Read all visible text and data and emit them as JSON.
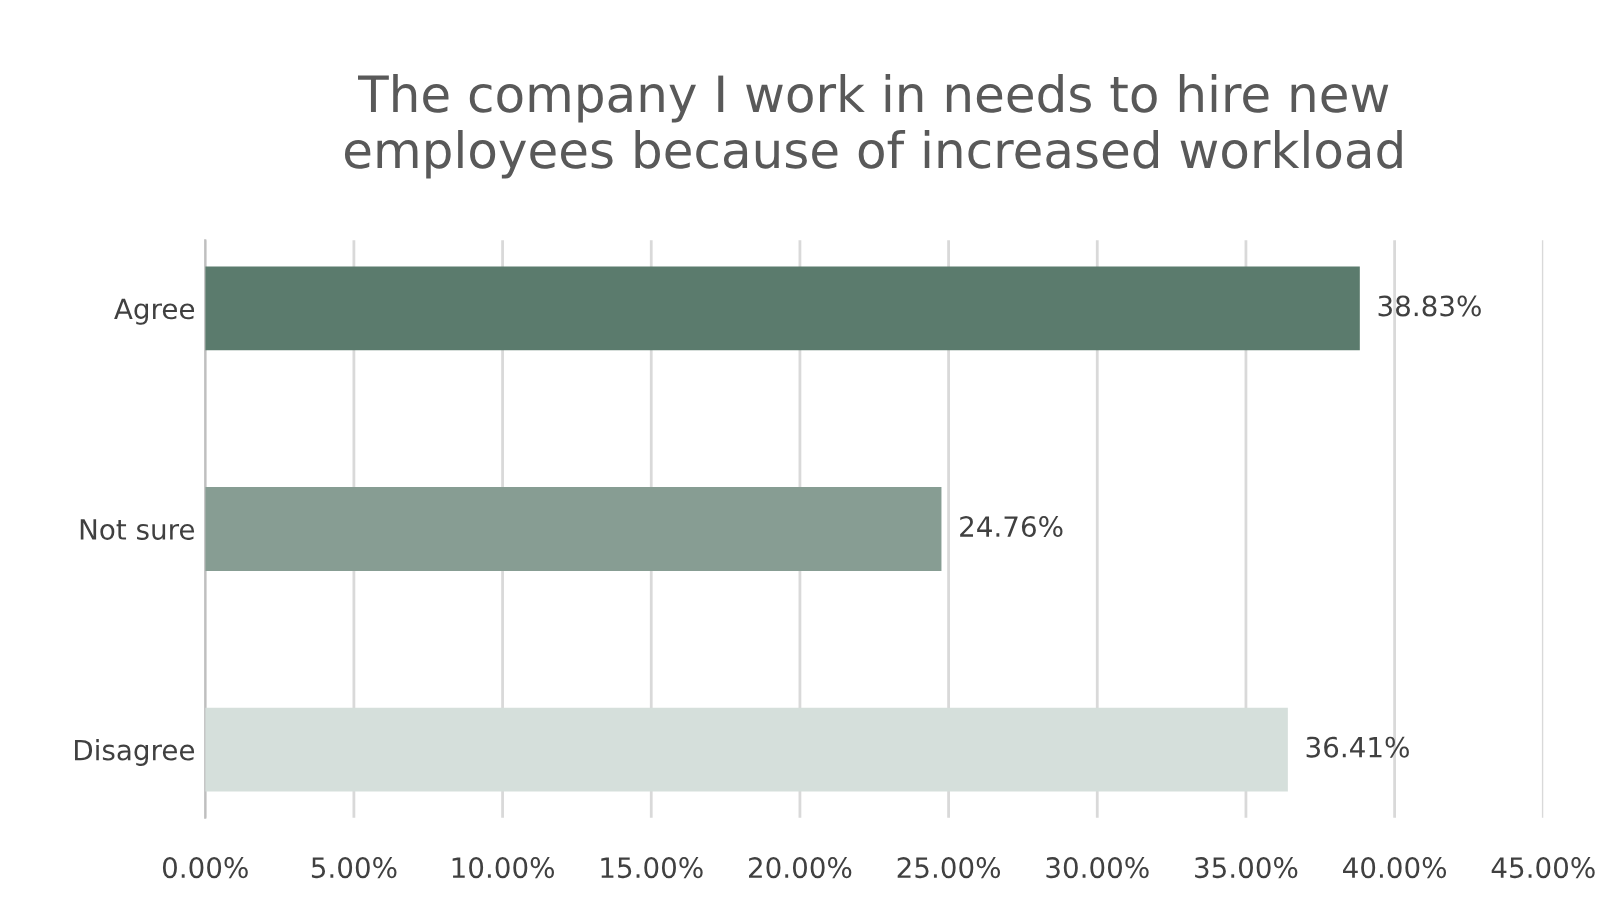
{
  "chart_data": {
    "type": "bar",
    "orientation": "horizontal",
    "title": "The company I work in needs to hire new\nemployees because of increased workload",
    "categories": [
      "Agree",
      "Not sure",
      "Disagree"
    ],
    "values": [
      38.83,
      24.76,
      36.41
    ],
    "colors": [
      "#5b7b6d",
      "#879d93",
      "#d5dfdb"
    ],
    "value_labels": [
      "38.83%",
      "24.76%",
      "36.41%"
    ],
    "xlim": [
      0,
      45
    ],
    "xticks": [
      {
        "value": 0,
        "label": "0.00%"
      },
      {
        "value": 5,
        "label": "5.00%"
      },
      {
        "value": 10,
        "label": "10.00%"
      },
      {
        "value": 15,
        "label": "15.00%"
      },
      {
        "value": 20,
        "label": "20.00%"
      },
      {
        "value": 25,
        "label": "25.00%"
      },
      {
        "value": 30,
        "label": "30.00%"
      },
      {
        "value": 35,
        "label": "35.00%"
      },
      {
        "value": 40,
        "label": "40.00%"
      },
      {
        "value": 45,
        "label": "45.00%"
      }
    ],
    "grid": "x",
    "legend": false
  }
}
